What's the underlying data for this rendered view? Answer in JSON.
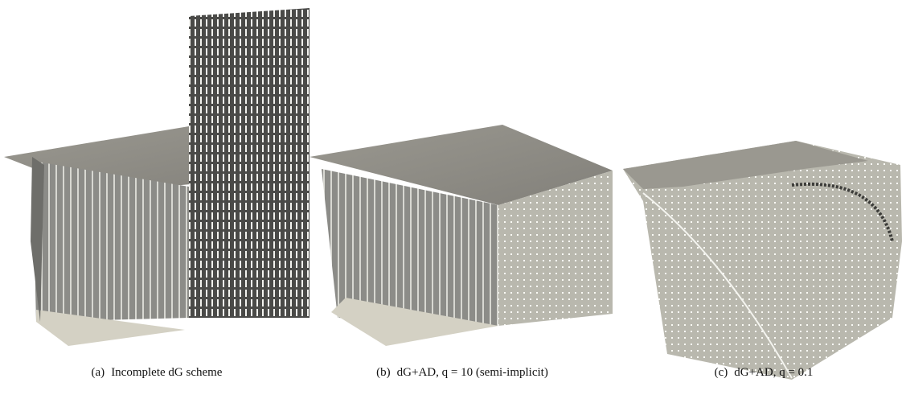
{
  "figures": [
    {
      "label": "(a)",
      "caption": "Incomplete dG scheme"
    },
    {
      "label": "(b)",
      "caption": "dG+AD, q = 10 (semi-implicit)"
    },
    {
      "label": "(c)",
      "caption": "dG+AD, q = 0.1"
    }
  ]
}
